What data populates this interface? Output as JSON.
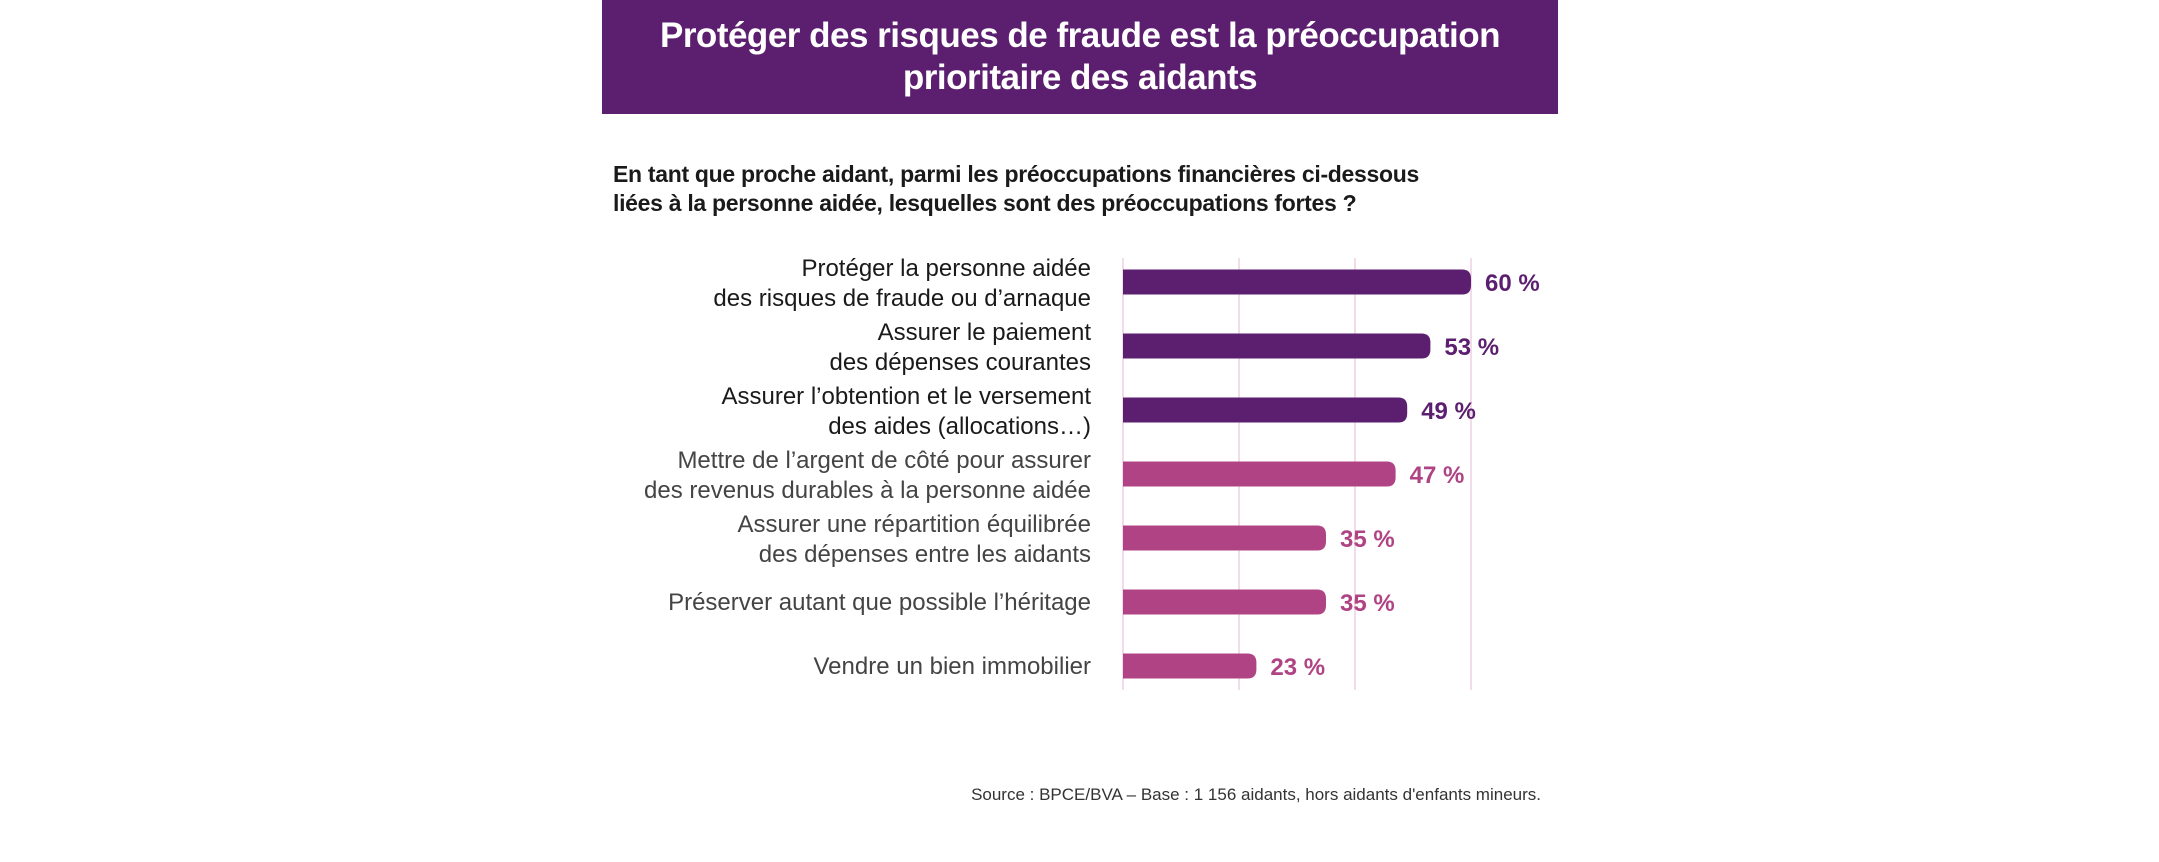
{
  "header": {
    "title_lines": [
      "Protéger des risques de fraude est la préoccupation",
      "prioritaire des aidants"
    ]
  },
  "question_lines": [
    "En tant que proche aidant, parmi les préoccupations financières ci-dessous",
    "liées à la personne aidée, lesquelles sont des préoccupations fortes ?"
  ],
  "source": "Source : BPCE/BVA – Base : 1 156 aidants, hors aidants d'enfants mineurs.",
  "colors": {
    "banner": "#5c1f70",
    "dark_bar": "#5c1f70",
    "light_bar": "#b04383",
    "grid": "#f2dcea"
  },
  "chart_data": {
    "type": "bar",
    "orientation": "horizontal",
    "categories": [
      [
        "Protéger la personne aidée",
        "des risques de fraude ou d’arnaque"
      ],
      [
        "Assurer le paiement",
        "des dépenses courantes"
      ],
      [
        "Assurer l’obtention et le versement",
        "des aides (allocations…)"
      ],
      [
        "Mettre de l’argent de côté pour assurer",
        "des revenus durables à la personne aidée"
      ],
      [
        "Assurer une répartition équilibrée",
        "des dépenses entre les aidants"
      ],
      [
        "Préserver autant que possible l’héritage"
      ],
      [
        "Vendre un bien immobilier"
      ]
    ],
    "values": [
      60,
      53,
      49,
      47,
      35,
      35,
      23
    ],
    "data_labels": [
      "60 %",
      "53 %",
      "49 %",
      "47 %",
      "35 %",
      "35 %",
      "23 %"
    ],
    "highlight": [
      true,
      true,
      true,
      false,
      false,
      false,
      false
    ],
    "xlim": [
      0,
      60
    ],
    "grid_x": [
      0,
      20,
      40,
      60
    ],
    "grid": true
  }
}
